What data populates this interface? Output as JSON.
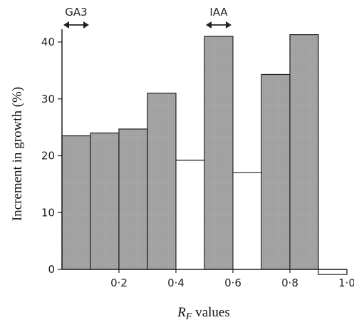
{
  "chart_data": {
    "type": "bar",
    "title": "",
    "xlabel_italic": "R",
    "xlabel_sub": "F",
    "xlabel_rest": " values",
    "ylabel": "Increment in growth (%)",
    "ylim": [
      0,
      42
    ],
    "yticks": [
      0,
      10,
      20,
      30,
      40
    ],
    "xlim": [
      0,
      1.0
    ],
    "xtick_values": [
      0.2,
      0.4,
      0.6,
      0.8,
      1.0
    ],
    "xtick_labels": [
      "0·2",
      "0·4",
      "0·6",
      "0·8",
      "1·0"
    ],
    "bar_width": 0.1,
    "bar_starts": [
      0.0,
      0.1,
      0.2,
      0.3,
      0.4,
      0.5,
      0.6,
      0.7,
      0.8,
      0.9
    ],
    "values": [
      23.5,
      24.0,
      24.7,
      31.0,
      19.2,
      41.0,
      17.0,
      34.3,
      41.3,
      -0.9
    ],
    "bar_kind": [
      "shaded",
      "shaded",
      "shaded",
      "shaded",
      "open",
      "shaded",
      "open",
      "shaded",
      "shaded",
      "open"
    ],
    "colors": {
      "shaded": "#a6a6a6",
      "open": "#ffffff",
      "line": "#222222"
    },
    "markers": [
      {
        "label": "GA3",
        "from": 0.0,
        "to": 0.1
      },
      {
        "label": "IAA",
        "from": 0.5,
        "to": 0.6
      }
    ],
    "grid": false,
    "legend": "none"
  }
}
